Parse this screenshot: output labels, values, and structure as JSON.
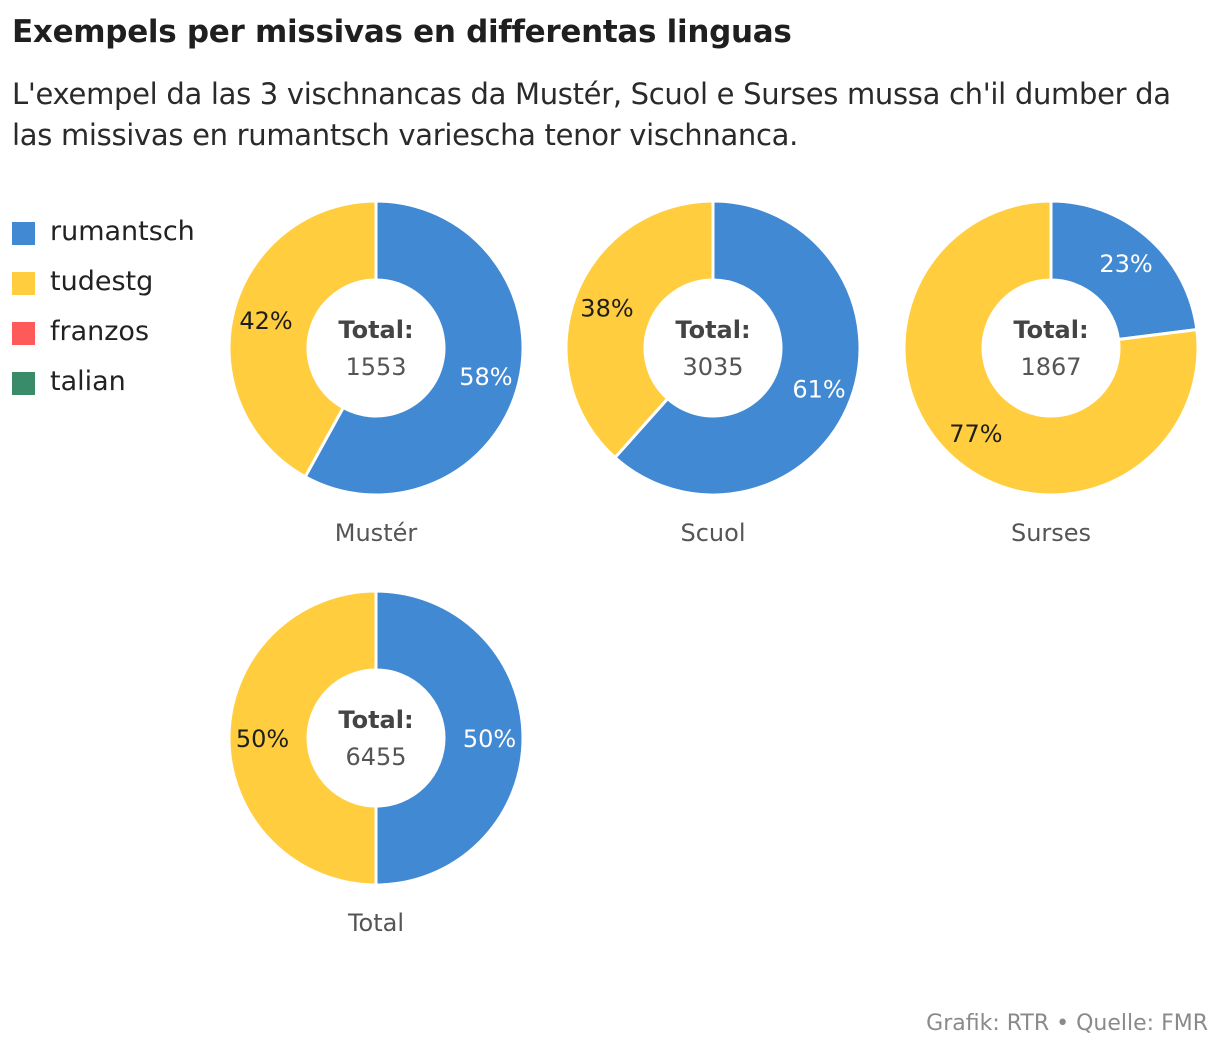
{
  "title": "Exempels per missivas en differentas linguas",
  "subtitle": "L'exempel da las 3 vischnancas da Mustér, Scuol e Surses mussa ch'il dumber da las missivas en rumantsch variescha tenor vischnanca.",
  "legend": [
    {
      "label": "rumantsch",
      "color": "#4289d4"
    },
    {
      "label": "tudestg",
      "color": "#ffcd3d"
    },
    {
      "label": "franzos",
      "color": "#ff5a5a"
    },
    {
      "label": "talian",
      "color": "#3a8c68"
    }
  ],
  "chart_data": [
    {
      "type": "pie",
      "name": "Mustér",
      "total_label": "Total:",
      "total": "1553",
      "slices": [
        {
          "category": "rumantsch",
          "value": 58,
          "label": "58%"
        },
        {
          "category": "tudestg",
          "value": 42,
          "label": "42%"
        }
      ]
    },
    {
      "type": "pie",
      "name": "Scuol",
      "total_label": "Total:",
      "total": "3035",
      "slices": [
        {
          "category": "rumantsch",
          "value": 61,
          "label": "61%"
        },
        {
          "category": "tudestg",
          "value": 38,
          "label": "38%"
        }
      ]
    },
    {
      "type": "pie",
      "name": "Surses",
      "total_label": "Total:",
      "total": "1867",
      "slices": [
        {
          "category": "rumantsch",
          "value": 23,
          "label": "23%"
        },
        {
          "category": "tudestg",
          "value": 77,
          "label": "77%"
        }
      ]
    },
    {
      "type": "pie",
      "name": "Total",
      "total_label": "Total:",
      "total": "6455",
      "slices": [
        {
          "category": "rumantsch",
          "value": 50,
          "label": "50%"
        },
        {
          "category": "tudestg",
          "value": 50,
          "label": "50%"
        }
      ]
    }
  ],
  "footer": "Grafik: RTR • Quelle: FMR"
}
